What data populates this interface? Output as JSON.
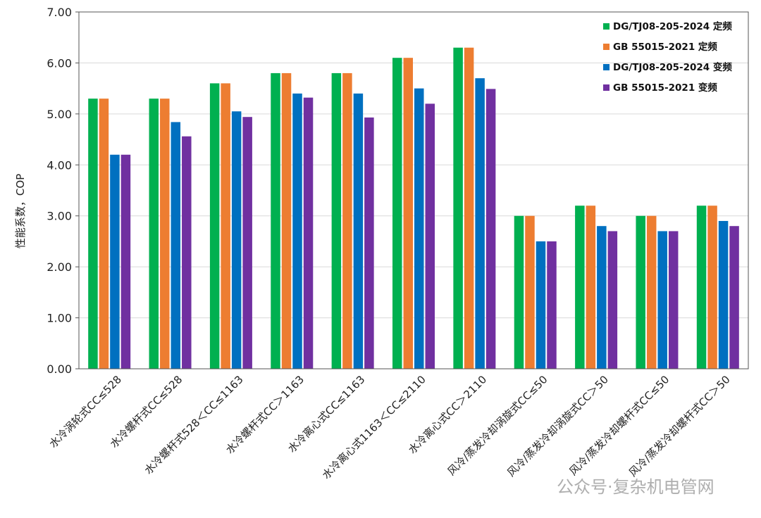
{
  "chart_data": {
    "type": "bar",
    "ylabel": "性能系数，COP",
    "ylim": [
      0,
      7
    ],
    "yticks": [
      "0.00",
      "1.00",
      "2.00",
      "3.00",
      "4.00",
      "5.00",
      "6.00",
      "7.00"
    ],
    "grid": true,
    "legend_position": "top-right",
    "categories": [
      "水冷涡轮式CC≤528",
      "水冷螺杆式CC≤528",
      "水冷螺杆式528＜CC≤1163",
      "水冷螺杆式CC＞1163",
      "水冷离心式CC≤1163",
      "水冷离心式1163＜CC≤2110",
      "水冷离心式CC＞2110",
      "风冷/蒸发冷却涡旋式CC≤50",
      "风冷/蒸发冷却涡旋式CC＞50",
      "风冷/蒸发冷却螺杆式CC≤50",
      "风冷/蒸发冷却螺杆式CC＞50"
    ],
    "series": [
      {
        "name": "DG/TJ08-205-2024 定频",
        "color": "#00b050",
        "values": [
          5.3,
          5.3,
          5.6,
          5.8,
          5.8,
          6.1,
          6.3,
          3.0,
          3.2,
          3.0,
          3.2
        ]
      },
      {
        "name": "GB 55015-2021 定频",
        "color": "#ed7d31",
        "values": [
          5.3,
          5.3,
          5.6,
          5.8,
          5.8,
          6.1,
          6.3,
          3.0,
          3.2,
          3.0,
          3.2
        ]
      },
      {
        "name": "DG/TJ08-205-2024 变频",
        "color": "#0070c0",
        "values": [
          4.2,
          4.84,
          5.05,
          5.4,
          5.4,
          5.5,
          5.7,
          2.5,
          2.8,
          2.7,
          2.9
        ]
      },
      {
        "name": "GB 55015-2021 变频",
        "color": "#7030a0",
        "values": [
          4.2,
          4.56,
          4.94,
          5.32,
          4.93,
          5.2,
          5.49,
          2.5,
          2.7,
          2.7,
          2.8
        ]
      }
    ]
  },
  "watermark": "公众号·复杂机电管网"
}
